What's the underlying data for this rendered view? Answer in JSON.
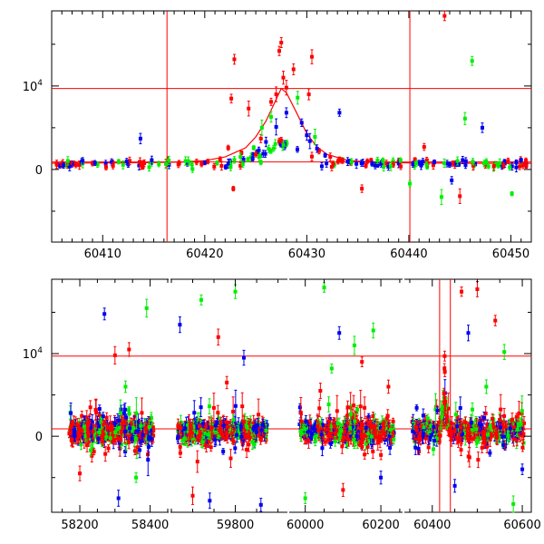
{
  "colors": {
    "red": "#ff0000",
    "green": "#00ee00",
    "blue": "#0000ee",
    "model": "#ff0000",
    "reference_lines": "#ff0000",
    "axes": "#000000"
  },
  "chart_data": [
    {
      "type": "scatter",
      "panel": "top",
      "xlim": [
        60405,
        60452
      ],
      "ylim": [
        -8700,
        19000
      ],
      "x_ticks": [
        60410,
        60420,
        60430,
        60440,
        60450
      ],
      "x_tick_labels": [
        "60410",
        "60420",
        "60430",
        "60440",
        "60450"
      ],
      "y_ticks": [
        0,
        10000
      ],
      "y_tick_labels": [
        "0",
        "10⁴"
      ],
      "hlines": [
        900,
        9700
      ],
      "vlines": [
        60416.3,
        60440.1
      ],
      "grid": false,
      "model_curve": {
        "x": [
          60405,
          60410,
          60415,
          60418,
          60420,
          60422,
          60424,
          60425,
          60426,
          60427,
          60427.5,
          60428,
          60429,
          60430,
          60431,
          60432,
          60434,
          60436,
          60440,
          60445,
          60452
        ],
        "y": [
          750,
          780,
          830,
          900,
          1050,
          1500,
          2600,
          3900,
          5800,
          8400,
          9700,
          9200,
          6800,
          4300,
          2700,
          1800,
          1100,
          900,
          780,
          750,
          730
        ]
      },
      "series": [
        {
          "color": "red",
          "points": [
            [
              60405.5,
              650
            ],
            [
              60407.2,
              700
            ],
            [
              60409.0,
              720
            ],
            [
              60411.0,
              800
            ],
            [
              60414.0,
              820
            ],
            [
              60417.5,
              760
            ],
            [
              60419.2,
              900
            ],
            [
              60420.3,
              950
            ],
            [
              60421.5,
              1200
            ],
            [
              60422.3,
              2600
            ],
            [
              60422.6,
              8500
            ],
            [
              60422.8,
              -2300
            ],
            [
              60422.9,
              13200
            ],
            [
              60423.6,
              2000
            ],
            [
              60424.3,
              7300
            ],
            [
              60425.5,
              3700
            ],
            [
              60426.5,
              8100
            ],
            [
              60427.0,
              9000
            ],
            [
              60427.3,
              14200
            ],
            [
              60427.5,
              15200
            ],
            [
              60427.7,
              11000
            ],
            [
              60428.0,
              9800
            ],
            [
              60428.7,
              12000
            ],
            [
              60430.2,
              9000
            ],
            [
              60430.5,
              13500
            ],
            [
              60431.2,
              2200
            ],
            [
              60432.3,
              1500
            ],
            [
              60433.2,
              1200
            ],
            [
              60434.3,
              800
            ],
            [
              60435.4,
              -2300
            ],
            [
              60436.3,
              1100
            ],
            [
              60437.8,
              750
            ],
            [
              60439.0,
              950
            ],
            [
              60440.6,
              1200
            ],
            [
              60441.5,
              2700
            ],
            [
              60442.4,
              500
            ],
            [
              60443.5,
              18400
            ],
            [
              60444.3,
              700
            ],
            [
              60445.0,
              -3200
            ],
            [
              60446.3,
              700
            ],
            [
              60447.5,
              500
            ],
            [
              60449.0,
              650
            ],
            [
              60451.5,
              700
            ]
          ]
        },
        {
          "color": "green",
          "points": [
            [
              60406.5,
              450
            ],
            [
              60409.5,
              600
            ],
            [
              60412.0,
              550
            ],
            [
              60415.5,
              650
            ],
            [
              60418.8,
              50
            ],
            [
              60421.2,
              780
            ],
            [
              60423.5,
              1500
            ],
            [
              60424.8,
              2600
            ],
            [
              60425.6,
              5000
            ],
            [
              60426.5,
              6300
            ],
            [
              60429.1,
              8600
            ],
            [
              60430.8,
              3900
            ],
            [
              60425.5,
              850
            ],
            [
              60433.5,
              1200
            ],
            [
              60436.6,
              600
            ],
            [
              60440.1,
              -1700
            ],
            [
              60441.8,
              300
            ],
            [
              60443.2,
              -3300
            ],
            [
              60445.5,
              6100
            ],
            [
              60446.2,
              13000
            ],
            [
              60447.8,
              400
            ],
            [
              60448.5,
              650
            ],
            [
              60450.1,
              -2900
            ],
            [
              60451.0,
              600
            ]
          ]
        },
        {
          "color": "blue",
          "points": [
            [
              60405.8,
              450
            ],
            [
              60407.0,
              650
            ],
            [
              60410.3,
              700
            ],
            [
              60412.5,
              600
            ],
            [
              60413.7,
              3700
            ],
            [
              60416.5,
              550
            ],
            [
              60418.3,
              700
            ],
            [
              60420.0,
              800
            ],
            [
              60422.5,
              950
            ],
            [
              60423.8,
              1200
            ],
            [
              60424.7,
              1800
            ],
            [
              60425.3,
              2300
            ],
            [
              60426.0,
              3300
            ],
            [
              60427.0,
              5100
            ],
            [
              60428.0,
              6800
            ],
            [
              60429.5,
              5600
            ],
            [
              60430.0,
              4100
            ],
            [
              60430.3,
              3400
            ],
            [
              60431.0,
              2500
            ],
            [
              60431.8,
              1700
            ],
            [
              60433.2,
              6800
            ],
            [
              60434.0,
              950
            ],
            [
              60435.5,
              800
            ],
            [
              60437.3,
              650
            ],
            [
              60439.0,
              700
            ],
            [
              60441.0,
              800
            ],
            [
              60442.5,
              900
            ],
            [
              60444.2,
              -1300
            ],
            [
              60444.9,
              600
            ],
            [
              60446.5,
              650
            ],
            [
              60447.2,
              5000
            ],
            [
              60449.4,
              700
            ],
            [
              60451.5,
              600
            ]
          ]
        }
      ]
    },
    {
      "type": "scatter",
      "panel": "bottom",
      "axis_break": true,
      "ylim": [
        -9200,
        19000
      ],
      "x_ticks": [
        58200,
        58400,
        59800,
        60000,
        60200,
        60400,
        60600
      ],
      "x_tick_labels": [
        "58200",
        "58400",
        "59800",
        "60000",
        "60200",
        "60400",
        "60600"
      ],
      "y_ticks": [
        0,
        10000
      ],
      "y_tick_labels": [
        "0",
        "10⁴"
      ],
      "hlines": [
        900,
        9700
      ],
      "vlines": [
        60416.3,
        60440.1
      ],
      "grid": false,
      "seasons": [
        {
          "xlim": [
            58120,
            58450
          ],
          "x_range": [
            58170,
            58410
          ],
          "outliers": [
            {
              "x": 58270,
              "y": 14800,
              "color": "blue"
            },
            {
              "x": 58300,
              "y": 9800,
              "color": "red"
            },
            {
              "x": 58340,
              "y": 10500,
              "color": "red"
            },
            {
              "x": 58390,
              "y": 15500,
              "color": "green"
            },
            {
              "x": 58200,
              "y": -4500,
              "color": "red"
            },
            {
              "x": 58310,
              "y": -7500,
              "color": "blue"
            },
            {
              "x": 58360,
              "y": -5000,
              "color": "green"
            },
            {
              "x": 58230,
              "y": 3500,
              "color": "red"
            },
            {
              "x": 58330,
              "y": 6000,
              "color": "green"
            }
          ]
        },
        {
          "xlim": [
            59650,
            59920
          ],
          "x_range": [
            59665,
            59875
          ],
          "outliers": [
            {
              "x": 59670,
              "y": 13500,
              "color": "blue"
            },
            {
              "x": 59720,
              "y": 16500,
              "color": "green"
            },
            {
              "x": 59760,
              "y": 12000,
              "color": "red"
            },
            {
              "x": 59800,
              "y": 17500,
              "color": "green"
            },
            {
              "x": 59820,
              "y": 9500,
              "color": "blue"
            },
            {
              "x": 59700,
              "y": -7200,
              "color": "red"
            },
            {
              "x": 59740,
              "y": -7800,
              "color": "blue"
            },
            {
              "x": 59860,
              "y": -8300,
              "color": "blue"
            },
            {
              "x": 59780,
              "y": 6500,
              "color": "red"
            }
          ]
        },
        {
          "xlim": [
            59960,
            60255
          ],
          "x_range": [
            59985,
            60235
          ],
          "outliers": [
            {
              "x": 60050,
              "y": 18000,
              "color": "green"
            },
            {
              "x": 60090,
              "y": 12500,
              "color": "blue"
            },
            {
              "x": 60130,
              "y": 11000,
              "color": "green"
            },
            {
              "x": 60150,
              "y": 9000,
              "color": "red"
            },
            {
              "x": 60180,
              "y": 12800,
              "color": "green"
            },
            {
              "x": 60070,
              "y": 8200,
              "color": "green"
            },
            {
              "x": 60000,
              "y": -7500,
              "color": "green"
            },
            {
              "x": 60100,
              "y": -6500,
              "color": "red"
            },
            {
              "x": 60200,
              "y": -5000,
              "color": "blue"
            },
            {
              "x": 60040,
              "y": 5500,
              "color": "red"
            },
            {
              "x": 60220,
              "y": 6000,
              "color": "red"
            }
          ]
        },
        {
          "xlim": [
            60340,
            60620
          ],
          "x_range": [
            60355,
            60605
          ],
          "outliers": [
            {
              "x": 60380,
              "y": 2500,
              "color": "blue"
            },
            {
              "x": 60500,
              "y": 17800,
              "color": "red"
            },
            {
              "x": 60540,
              "y": 14000,
              "color": "red"
            },
            {
              "x": 60480,
              "y": 12500,
              "color": "blue"
            },
            {
              "x": 60560,
              "y": 10200,
              "color": "green"
            },
            {
              "x": 60600,
              "y": -4000,
              "color": "blue"
            },
            {
              "x": 60580,
              "y": -8200,
              "color": "green"
            },
            {
              "x": 60450,
              "y": -6000,
              "color": "blue"
            },
            {
              "x": 60520,
              "y": 6000,
              "color": "green"
            },
            {
              "x": 60465,
              "y": 17500,
              "color": "red"
            }
          ]
        }
      ]
    }
  ]
}
